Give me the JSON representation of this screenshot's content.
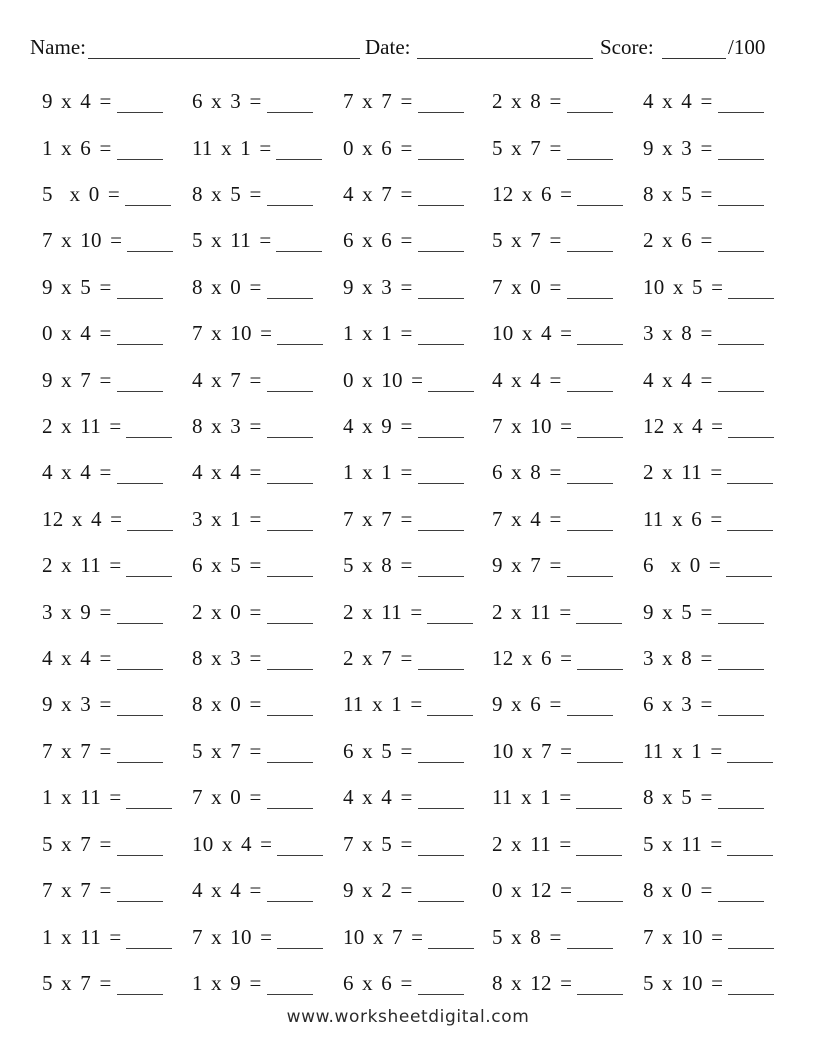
{
  "header": {
    "name_label": "Name:",
    "date_label": "Date:",
    "score_label": "Score:",
    "score_total": "/100"
  },
  "problems": [
    [
      "9 x 4 =",
      "6 x 3 =",
      "7 x 7 =",
      "2 x 8 =",
      "4 x 4 ="
    ],
    [
      "1 x 6 =",
      "11 x 1 =",
      "0 x 6 =",
      "5 x 7 =",
      "9 x 3 ="
    ],
    [
      "5  x 0 =",
      "8 x 5 =",
      "4 x 7 =",
      "12 x 6 =",
      "8 x 5 ="
    ],
    [
      "7 x 10 =",
      "5 x 11 =",
      "6 x 6 =",
      "5 x 7 =",
      "2 x 6 ="
    ],
    [
      "9 x 5 =",
      "8 x 0 =",
      "9 x 3 =",
      "7 x 0 =",
      "10 x 5 ="
    ],
    [
      "0 x 4 =",
      "7 x 10 =",
      "1 x 1 =",
      "10 x 4 =",
      "3 x 8 ="
    ],
    [
      "9 x 7 =",
      "4 x 7 =",
      "0 x 10 =",
      "4 x 4 =",
      "4 x 4 ="
    ],
    [
      "2 x 11 =",
      "8 x 3 =",
      "4 x 9 =",
      "7 x 10 =",
      "12 x 4 ="
    ],
    [
      "4 x 4 =",
      "4 x 4 =",
      "1 x 1 =",
      "6 x 8 =",
      "2 x 11 ="
    ],
    [
      "12 x 4 =",
      "3 x 1 =",
      "7 x 7 =",
      "7 x 4 =",
      "11 x 6 ="
    ],
    [
      "2 x 11 =",
      "6 x 5 =",
      "5 x 8 =",
      "9 x 7 =",
      "6  x 0 ="
    ],
    [
      "3 x 9 =",
      "2 x 0 =",
      "2 x 11 =",
      "2 x 11 =",
      "9 x 5 ="
    ],
    [
      "4 x 4 =",
      "8 x 3 =",
      "2 x 7 =",
      "12 x 6 =",
      "3 x 8 ="
    ],
    [
      "9 x 3 =",
      "8 x 0 =",
      "11 x 1 =",
      "9 x 6 =",
      "6 x 3 ="
    ],
    [
      "7 x 7 =",
      "5 x 7 =",
      "6 x 5 =",
      "10 x 7 =",
      "11 x 1 ="
    ],
    [
      "1 x 11 =",
      "7 x 0 =",
      "4 x 4 =",
      "11 x 1 =",
      "8 x 5 ="
    ],
    [
      "5 x 7 =",
      "10 x 4 =",
      "7 x 5 =",
      "2 x 11 =",
      "5 x 11 ="
    ],
    [
      "7 x 7 =",
      "4 x 4 =",
      "9 x 2 =",
      "0 x 12 =",
      "8 x 0 ="
    ],
    [
      "1 x 11 =",
      "7 x 10 =",
      "10 x 7 =",
      "5 x 8 =",
      "7 x 10 ="
    ],
    [
      "5 x 7 =",
      "1 x 9 =",
      "6 x 6 =",
      "8 x 12 =",
      "5 x 10 ="
    ]
  ],
  "footer": {
    "website": "www.worksheetdigital.com"
  }
}
